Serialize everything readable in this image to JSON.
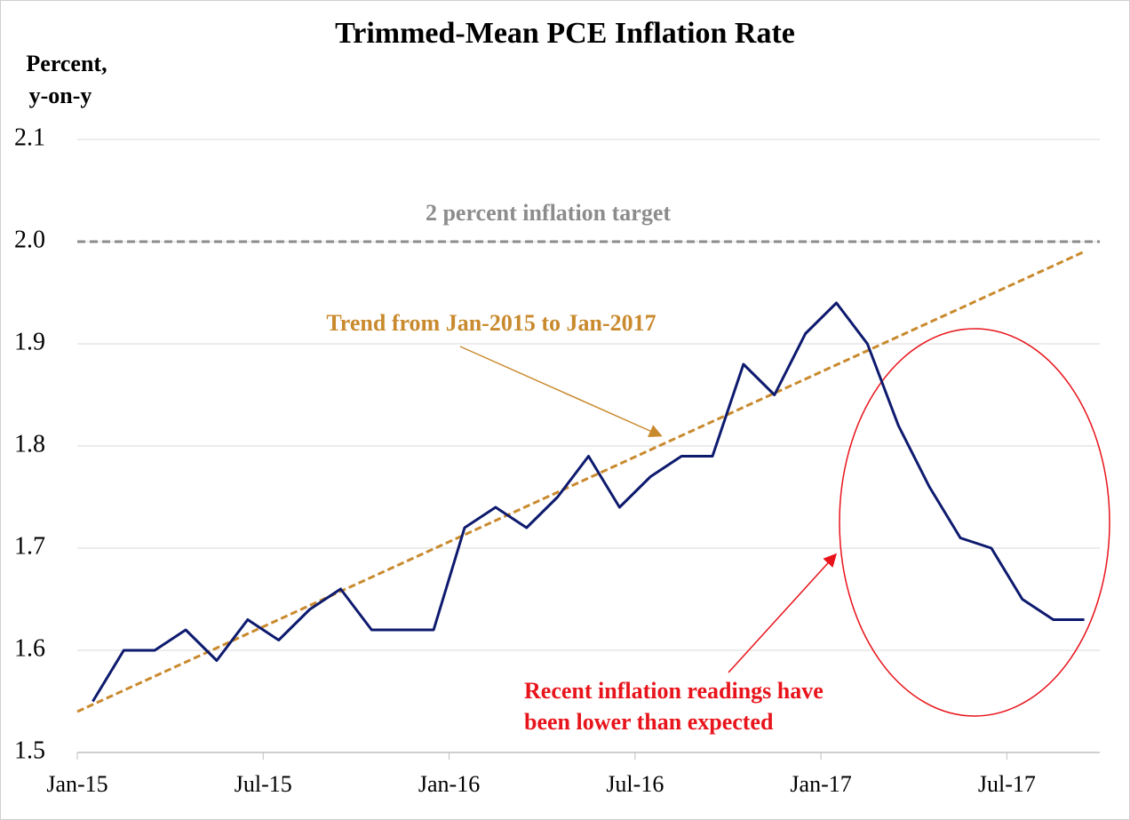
{
  "chart_data": {
    "type": "line",
    "title": "Trimmed-Mean PCE Inflation Rate",
    "ylabel": [
      "Percent,",
      "y-on-y"
    ],
    "categories": [
      "Jan-15",
      null,
      null,
      null,
      null,
      null,
      "Jul-15",
      null,
      null,
      null,
      null,
      null,
      "Jan-16",
      null,
      null,
      null,
      null,
      null,
      "Jul-16",
      null,
      null,
      null,
      null,
      null,
      "Jan-17",
      null,
      null,
      null,
      null,
      null,
      "Jul-17",
      null,
      null
    ],
    "values": [
      1.55,
      1.6,
      1.6,
      1.62,
      1.59,
      1.63,
      1.61,
      1.64,
      1.66,
      1.62,
      1.62,
      1.62,
      1.72,
      1.74,
      1.72,
      1.75,
      1.79,
      1.74,
      1.77,
      1.79,
      1.79,
      1.88,
      1.85,
      1.91,
      1.94,
      1.9,
      1.82,
      1.76,
      1.71,
      1.7,
      1.65,
      1.63,
      1.63
    ],
    "color": "#0d1a6e",
    "trend": {
      "label": "Trend from Jan-2015 to Jan-2017",
      "values": [
        1.54,
        1.99
      ],
      "color": "#c98a2e"
    },
    "target": {
      "label": "2 percent inflation target",
      "value": 2,
      "color": "#8c8c8c"
    },
    "note": {
      "lines": [
        "Recent inflation readings have",
        "been lower than expected"
      ],
      "color": "#e8141b"
    },
    "ylim": [
      1.5,
      2.1
    ],
    "yticks": [
      1.5,
      1.6,
      1.7,
      1.8,
      1.9,
      {
        "value": 2,
        "label": "2.0"
      },
      2.1
    ],
    "grid": true
  }
}
